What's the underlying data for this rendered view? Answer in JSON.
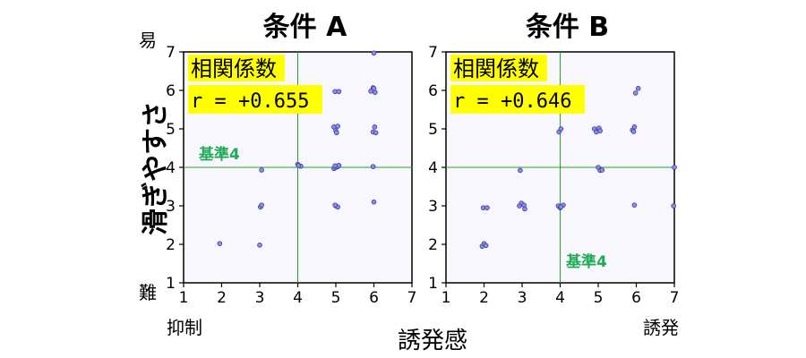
{
  "ylabel": "滑ぎやすさ",
  "xlabel": "誘発感",
  "y_top_hint": "易",
  "y_bottom_hint": "難",
  "x_left_hint": "抑制",
  "x_right_hint": "誘発",
  "colors": {
    "plot_bg": "#f7f7fd",
    "point_fill": "#8c8ce6",
    "point_edge": "#3a3aa0",
    "ref_line": "#2ca02c",
    "ref_label": "#22aa55",
    "highlight": "#ffff00"
  },
  "chart_data": [
    {
      "type": "scatter",
      "title": "条件 A",
      "xlim": [
        1,
        7
      ],
      "ylim": [
        1,
        7
      ],
      "xticks": [
        "1",
        "2",
        "3",
        "4",
        "5",
        "6",
        "7"
      ],
      "yticks": [
        "1",
        "2",
        "3",
        "4",
        "5",
        "6",
        "7"
      ],
      "grid": false,
      "corr_label": "相関係数",
      "corr_value": "r = +0.655",
      "ref_label": "基準4",
      "ref_label_position": "left, above horizontal reference line",
      "ref_x": 4,
      "ref_y": 4,
      "points": [
        [
          1.95,
          2.02
        ],
        [
          3.0,
          1.98
        ],
        [
          3.02,
          2.97
        ],
        [
          3.05,
          3.02
        ],
        [
          3.05,
          3.93
        ],
        [
          4.0,
          4.08
        ],
        [
          4.08,
          4.03
        ],
        [
          4.02,
          4.05
        ],
        [
          4.95,
          3.97
        ],
        [
          5.0,
          4.0
        ],
        [
          5.05,
          4.02
        ],
        [
          5.08,
          4.05
        ],
        [
          4.98,
          4.04
        ],
        [
          4.95,
          5.05
        ],
        [
          5.0,
          4.95
        ],
        [
          5.05,
          5.07
        ],
        [
          5.02,
          4.9
        ],
        [
          5.0,
          3.0
        ],
        [
          5.05,
          2.97
        ],
        [
          4.98,
          3.02
        ],
        [
          4.98,
          5.97
        ],
        [
          5.08,
          5.97
        ],
        [
          5.92,
          5.98
        ],
        [
          5.98,
          6.07
        ],
        [
          6.03,
          5.95
        ],
        [
          6.0,
          6.05
        ],
        [
          5.98,
          4.92
        ],
        [
          6.02,
          5.05
        ],
        [
          6.05,
          4.9
        ],
        [
          6.0,
          6.97
        ],
        [
          5.98,
          4.02
        ],
        [
          6.0,
          3.1
        ]
      ]
    },
    {
      "type": "scatter",
      "title": "条件 B",
      "xlim": [
        1,
        7
      ],
      "ylim": [
        1,
        7
      ],
      "xticks": [
        "1",
        "2",
        "3",
        "4",
        "5",
        "6",
        "7"
      ],
      "yticks": [
        "1",
        "2",
        "3",
        "4",
        "5",
        "6",
        "7"
      ],
      "grid": false,
      "corr_label": "相関係数",
      "corr_value": "r = +0.646",
      "ref_label": "基準4",
      "ref_label_position": "right, below horizontal reference line",
      "ref_x": 4,
      "ref_y": 4,
      "points": [
        [
          1.95,
          1.95
        ],
        [
          2.0,
          2.02
        ],
        [
          2.05,
          1.97
        ],
        [
          1.98,
          2.95
        ],
        [
          2.08,
          2.95
        ],
        [
          2.93,
          3.0
        ],
        [
          2.98,
          3.07
        ],
        [
          3.05,
          3.02
        ],
        [
          3.07,
          2.92
        ],
        [
          2.95,
          3.92
        ],
        [
          3.95,
          3.0
        ],
        [
          4.0,
          2.95
        ],
        [
          4.08,
          3.02
        ],
        [
          4.02,
          2.97
        ],
        [
          3.97,
          4.92
        ],
        [
          4.02,
          5.0
        ],
        [
          4.9,
          5.0
        ],
        [
          4.95,
          4.92
        ],
        [
          5.02,
          5.02
        ],
        [
          5.05,
          4.95
        ],
        [
          5.0,
          4.0
        ],
        [
          5.05,
          3.92
        ],
        [
          5.1,
          3.93
        ],
        [
          5.9,
          4.97
        ],
        [
          5.95,
          5.05
        ],
        [
          5.93,
          4.93
        ],
        [
          6.05,
          6.05
        ],
        [
          5.98,
          5.93
        ],
        [
          5.95,
          3.02
        ],
        [
          6.98,
          3.0
        ],
        [
          7.0,
          4.0
        ]
      ]
    }
  ]
}
